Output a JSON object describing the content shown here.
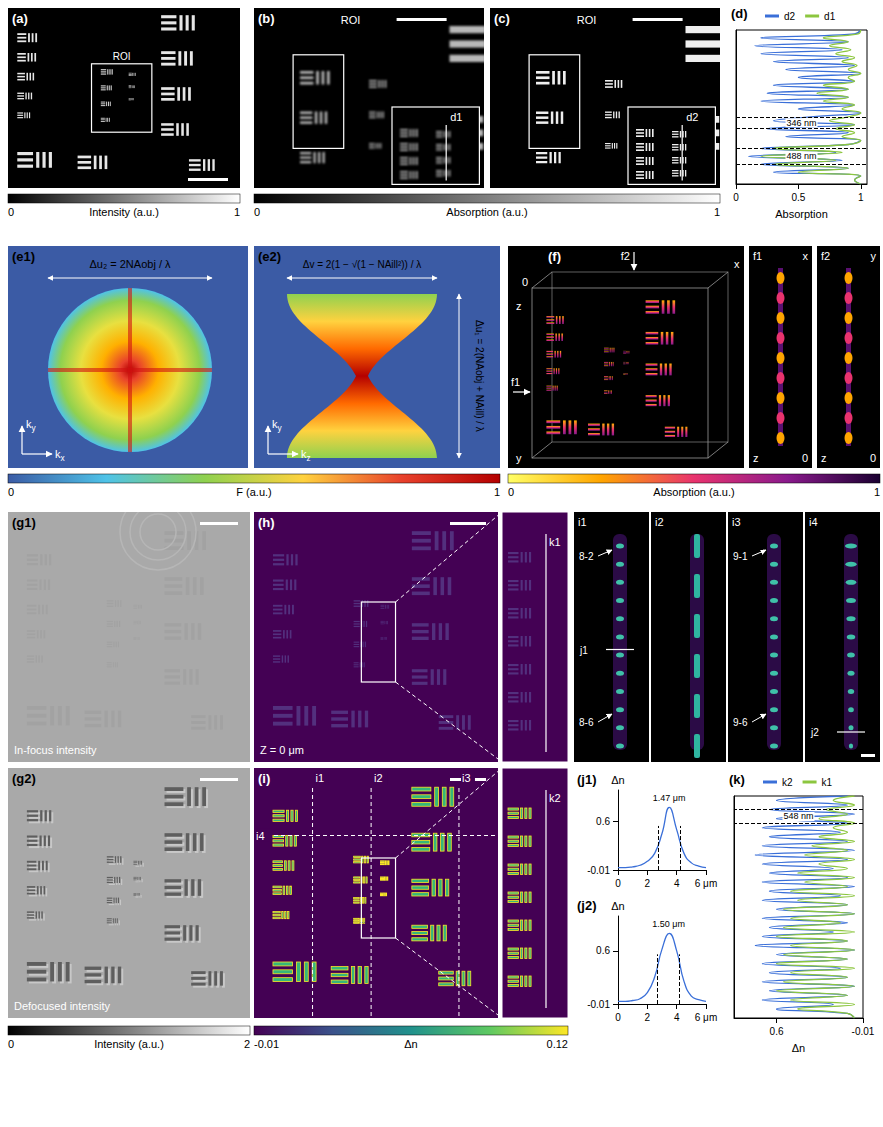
{
  "panels": {
    "a": {
      "label": "(a)",
      "roi": "ROI",
      "colorbar": {
        "title": "Intensity (a.u.)",
        "range": [
          0,
          1
        ],
        "ticks": [
          0,
          1
        ],
        "colors": [
          "#000000",
          "#ffffff"
        ]
      }
    },
    "b": {
      "label": "(b)",
      "roi": "ROI",
      "profile": "d1"
    },
    "c": {
      "label": "(c)",
      "roi": "ROI",
      "profile": "d2"
    },
    "bc_colorbar": {
      "title": "Absorption (a.u.)",
      "range": [
        0,
        1
      ],
      "ticks": [
        0,
        1
      ],
      "colors": [
        "#000000",
        "#ffffff"
      ]
    },
    "e1": {
      "label": "(e1)",
      "formula": "Δu₂ = 2NAobj / λ",
      "axes": [
        "kx",
        "ky"
      ]
    },
    "e2": {
      "label": "(e2)",
      "formula_h": "Δv = 2(1 − √(1 − NAill²)) / λ",
      "formula_v": "Δu₁ = 2(NAobj + NAill) / λ",
      "axes": [
        "kz",
        "ky"
      ]
    },
    "e_colorbar": {
      "title": "F (a.u.)",
      "range": [
        0,
        1
      ],
      "ticks": [
        0,
        1
      ],
      "colors": [
        "#3b5ba5",
        "#4fc3e8",
        "#8fd14f",
        "#ffd23f",
        "#e8412c",
        "#b40000"
      ]
    },
    "f": {
      "label": "(f)",
      "cuts": [
        "f1",
        "f2"
      ],
      "axes": [
        "z",
        "0",
        "x",
        "y"
      ],
      "colorbar": {
        "title": "Absorption (a.u.)",
        "range": [
          0,
          1
        ],
        "ticks": [
          0,
          1
        ],
        "colors": [
          "#ffff66",
          "#ffa500",
          "#e8336e",
          "#8a1a8c",
          "#1a0030"
        ]
      }
    },
    "f1": {
      "label": "f1",
      "axes": [
        "x",
        "z",
        "0"
      ]
    },
    "f2": {
      "label": "f2",
      "axes": [
        "y",
        "z",
        "0"
      ]
    },
    "g1": {
      "label": "(g1)",
      "caption": "In-focus intensity"
    },
    "g2": {
      "label": "(g2)",
      "caption": "Defocused intensity"
    },
    "g_colorbar": {
      "title": "Intensity (a.u.)",
      "range": [
        0,
        2
      ],
      "ticks": [
        0,
        2
      ],
      "colors": [
        "#000000",
        "#ffffff"
      ]
    },
    "h": {
      "label": "(h)",
      "depth": "Z = 0 μm",
      "profile": "k1"
    },
    "i": {
      "label": "(i)",
      "cuts": [
        "i1",
        "i2",
        "i3",
        "i4"
      ],
      "profile": "k2"
    },
    "n_colorbar": {
      "title": "Δn",
      "range": [
        -0.01,
        0.12
      ],
      "ticks": [
        -0.01,
        0.12
      ],
      "colors": [
        "#440154",
        "#3b528b",
        "#21918c",
        "#5ec962",
        "#fde725"
      ]
    },
    "cut_panels": [
      {
        "label": "i1",
        "elements": [
          "8-2",
          "8-6"
        ],
        "profile": "j1"
      },
      {
        "label": "i2"
      },
      {
        "label": "i3",
        "elements": [
          "9-1",
          "9-6"
        ]
      },
      {
        "label": "i4",
        "profile": "j2"
      }
    ]
  },
  "chart_data": [
    {
      "type": "line",
      "title": "(d)",
      "xlabel": "Absorption",
      "xlim": [
        0,
        1.05
      ],
      "xticks": [
        0,
        0.5,
        1
      ],
      "ylim": [
        39,
        0
      ],
      "tick_labels": "x",
      "legend": "top",
      "y": [
        0,
        1,
        2,
        3,
        4,
        5,
        6,
        7,
        8,
        9,
        10,
        11,
        12,
        13,
        14,
        15,
        16,
        17,
        18,
        19,
        20,
        21,
        22,
        23,
        24,
        25,
        26,
        27,
        28,
        29,
        30,
        31,
        32,
        33,
        34,
        35,
        36,
        37,
        38,
        39
      ],
      "series": [
        {
          "name": "d2",
          "color": "#3a6fd8",
          "values": [
            1,
            0.95,
            0.2,
            0.9,
            0.15,
            0.85,
            0.2,
            0.9,
            0.3,
            0.95,
            0.4,
            1,
            0.5,
            0.95,
            0.3,
            0.9,
            0.25,
            0.9,
            0.2,
            0.95,
            0.5,
            1,
            0.6,
            0.3,
            0.95,
            0.25,
            0.9,
            0.4,
            1,
            0.9,
            0.2,
            0.8,
            0.1,
            0.85,
            0.2,
            0.9,
            0.3,
            1,
            0.95,
            1
          ]
        },
        {
          "name": "d1",
          "color": "#8cc63f",
          "values": [
            1,
            0.98,
            0.7,
            0.9,
            0.75,
            0.92,
            0.8,
            0.95,
            0.85,
            0.97,
            0.9,
            1,
            0.9,
            0.95,
            0.7,
            0.9,
            0.65,
            0.9,
            0.7,
            0.95,
            0.85,
            1,
            0.9,
            0.75,
            0.95,
            0.8,
            0.95,
            0.85,
            1,
            0.9,
            0.3,
            0.85,
            0.2,
            0.8,
            0.3,
            0.9,
            0.5,
            1,
            0.95,
            1
          ]
        }
      ],
      "annotations": [
        {
          "text": "346 nm",
          "y": [
            22,
            25
          ]
        },
        {
          "text": "488 nm",
          "y": [
            30,
            34
          ]
        }
      ]
    },
    {
      "type": "line",
      "title": "(j1)",
      "ylabel": "Δn",
      "xlim": [
        0,
        6
      ],
      "xticks": [
        0,
        2,
        4,
        {
          "value": 6,
          "label": "6 μm"
        }
      ],
      "ylim": [
        -0.01,
        1
      ],
      "yticks": [
        -0.01,
        0.6
      ],
      "x": [
        0,
        0.5,
        1,
        1.5,
        2,
        2.5,
        3,
        3.5,
        4,
        4.5,
        5,
        5.5,
        6
      ],
      "series": [
        {
          "color": "#3a6fd8",
          "values": [
            0.02,
            0.02,
            0.03,
            0.05,
            0.1,
            0.2,
            0.45,
            0.78,
            0.5,
            0.2,
            0.08,
            0.04,
            0.02
          ]
        }
      ],
      "annotations": [
        {
          "text": "1.47 μm",
          "x": [
            2.75,
            4.22
          ]
        }
      ]
    },
    {
      "type": "line",
      "title": "(j2)",
      "ylabel": "Δn",
      "xlim": [
        0,
        6
      ],
      "xticks": [
        0,
        2,
        4,
        {
          "value": 6,
          "label": "6 μm"
        }
      ],
      "ylim": [
        -0.01,
        1
      ],
      "yticks": [
        -0.01,
        0.6
      ],
      "x": [
        0,
        0.5,
        1,
        1.5,
        2,
        2.5,
        3,
        3.5,
        4,
        4.5,
        5,
        5.5,
        6
      ],
      "series": [
        {
          "color": "#3a6fd8",
          "values": [
            0.02,
            0.02,
            0.03,
            0.05,
            0.12,
            0.3,
            0.62,
            0.8,
            0.6,
            0.25,
            0.08,
            0.04,
            0.02
          ]
        }
      ],
      "annotations": [
        {
          "text": "1.50 μm",
          "x": [
            2.7,
            4.2
          ]
        }
      ]
    },
    {
      "type": "line",
      "title": "(k)",
      "xlabel": "Δn",
      "xlim": [
        0.9,
        -0.01
      ],
      "xticks": [
        0.6,
        -0.01
      ],
      "ylim": [
        49,
        0
      ],
      "tick_labels": "x",
      "legend": "top",
      "y": [
        0,
        1,
        2,
        3,
        4,
        5,
        6,
        7,
        8,
        9,
        10,
        11,
        12,
        13,
        14,
        15,
        16,
        17,
        18,
        19,
        20,
        21,
        22,
        23,
        24,
        25,
        26,
        27,
        28,
        29,
        30,
        31,
        32,
        33,
        34,
        35,
        36,
        37,
        38,
        39,
        40,
        41,
        42,
        43,
        44,
        45,
        46,
        47,
        48,
        49
      ],
      "series": [
        {
          "name": "k2",
          "color": "#3a6fd8",
          "values": [
            0.1,
            0.6,
            0.1,
            0.65,
            0.05,
            0.6,
            0.1,
            0.7,
            0.15,
            0.65,
            0.1,
            0.7,
            0.05,
            0.75,
            0.1,
            0.7,
            0.2,
            0.65,
            0.1,
            0.7,
            0.05,
            0.65,
            0.15,
            0.7,
            0.1,
            0.6,
            0.05,
            0.7,
            0.1,
            0.65,
            0.2,
            0.7,
            0.1,
            0.75,
            0.05,
            0.6,
            0.1,
            0.7,
            0.15,
            0.65,
            0.1,
            0.7,
            0.05,
            0.65,
            0.1,
            0.7,
            0.2,
            0.6,
            0.1,
            0.05
          ]
        },
        {
          "name": "k1",
          "color": "#8cc63f",
          "values": [
            0.05,
            0.2,
            0.05,
            0.25,
            0.1,
            0.3,
            0.05,
            0.2,
            0.1,
            0.3,
            0.05,
            0.35,
            0.1,
            0.4,
            0.05,
            0.3,
            0.1,
            0.45,
            0.05,
            0.4,
            0.1,
            0.5,
            0.05,
            0.45,
            0.1,
            0.55,
            0.05,
            0.5,
            0.15,
            0.55,
            0.05,
            0.6,
            0.1,
            0.5,
            0.05,
            0.55,
            0.1,
            0.6,
            0.05,
            0.5,
            0.1,
            0.55,
            0.05,
            0.6,
            0.1,
            0.5,
            0.05,
            0.45,
            0.1,
            0.05
          ]
        }
      ],
      "annotations": [
        {
          "text": "548 nm",
          "y": [
            3,
            6
          ]
        }
      ]
    }
  ]
}
